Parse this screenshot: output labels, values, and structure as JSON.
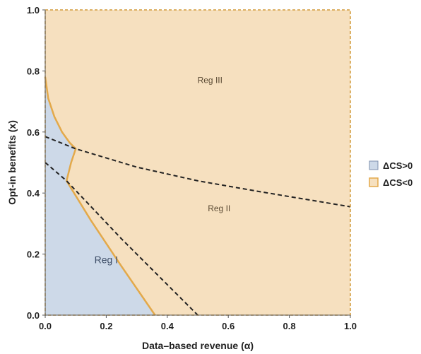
{
  "chart_data": {
    "type": "area",
    "title": "",
    "xlabel": "Data–based revenue (α)",
    "ylabel": "Opt-in benefits (x)",
    "xlim": [
      0,
      1
    ],
    "ylim": [
      0,
      1
    ],
    "xticks": [
      "0.0",
      "0.2",
      "0.4",
      "0.6",
      "0.8",
      "1.0"
    ],
    "yticks": [
      "0.0",
      "0.2",
      "0.4",
      "0.6",
      "0.8",
      "1.0"
    ],
    "legend_position": "right",
    "legend": [
      {
        "label": "ΔCS>0",
        "color": "#cdd9e8"
      },
      {
        "label": "ΔCS<0",
        "color": "#f6e0bf"
      }
    ],
    "colors": {
      "positive": "#cdd9e8",
      "negative": "#f6e0bf",
      "boundary": "#e3a94a",
      "dashed": "#222222"
    },
    "regions": [
      {
        "label": "Reg I",
        "x": 0.2,
        "y": 0.17
      },
      {
        "label": "Reg II",
        "x": 0.57,
        "y": 0.34
      },
      {
        "label": "Reg III",
        "x": 0.54,
        "y": 0.76
      }
    ],
    "positive_region_boundary": [
      [
        0.0,
        0.78
      ],
      [
        0.01,
        0.71
      ],
      [
        0.03,
        0.65
      ],
      [
        0.055,
        0.6
      ],
      [
        0.08,
        0.565
      ],
      [
        0.1,
        0.545
      ],
      [
        0.085,
        0.5
      ],
      [
        0.07,
        0.44
      ],
      [
        0.15,
        0.31
      ],
      [
        0.25,
        0.16
      ],
      [
        0.36,
        0.0
      ]
    ],
    "dashed_lines": [
      {
        "name": "upper",
        "points": [
          [
            0.0,
            0.585
          ],
          [
            0.1,
            0.545
          ],
          [
            0.3,
            0.485
          ],
          [
            0.5,
            0.44
          ],
          [
            0.7,
            0.405
          ],
          [
            1.0,
            0.355
          ]
        ]
      },
      {
        "name": "lower",
        "points": [
          [
            0.0,
            0.5
          ],
          [
            0.07,
            0.44
          ],
          [
            0.25,
            0.25
          ],
          [
            0.5,
            0.0
          ]
        ]
      }
    ]
  }
}
